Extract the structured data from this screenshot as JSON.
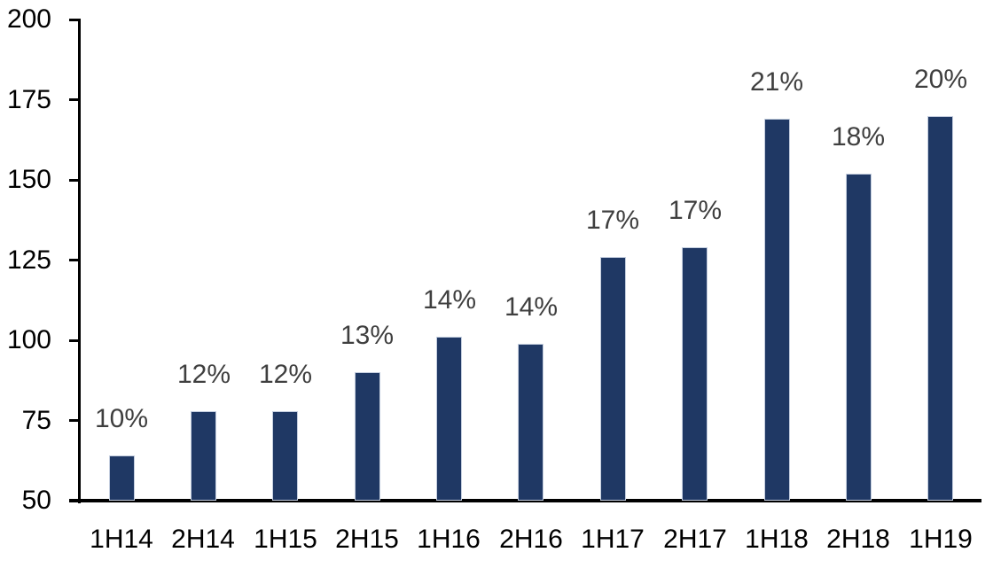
{
  "chart_data": {
    "type": "bar",
    "title": "",
    "xlabel": "",
    "ylabel": "",
    "categories": [
      "1H14",
      "2H14",
      "1H15",
      "2H15",
      "1H16",
      "2H16",
      "1H17",
      "2H17",
      "1H18",
      "2H18",
      "1H19"
    ],
    "values": [
      64,
      78,
      78,
      90,
      101,
      99,
      126,
      129,
      169,
      152,
      170
    ],
    "bar_labels": [
      "10%",
      "12%",
      "12%",
      "13%",
      "14%",
      "14%",
      "17%",
      "17%",
      "21%",
      "18%",
      "20%"
    ],
    "ylim": [
      50,
      200
    ],
    "yticks": [
      50,
      75,
      100,
      125,
      150,
      175,
      200
    ],
    "grid": false,
    "legend": false,
    "colors": {
      "bar_fill": "#1f3864",
      "bar_border": "#c3cdde",
      "bar_label_text": "#3f3f3f",
      "axis_text": "#000000",
      "axis_line": "#000000",
      "background": "#ffffff"
    }
  }
}
